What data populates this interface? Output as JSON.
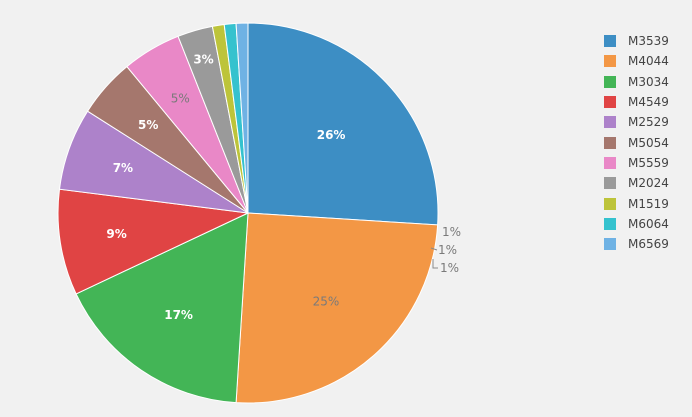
{
  "chart_data": {
    "type": "pie",
    "title": "",
    "series": [
      {
        "name": "",
        "categories": [
          "M3539",
          "M4044",
          "M3034",
          "M4549",
          "M2529",
          "M5054",
          "M5559",
          "M2024",
          "M1519",
          "M6064",
          "M6569"
        ],
        "values": [
          26,
          25,
          17,
          9,
          7,
          5,
          5,
          3,
          1,
          1,
          1
        ],
        "labels": [
          "26%",
          "25%",
          "17%",
          "9%",
          "7%",
          "5%",
          "5%",
          "3%",
          "1%",
          "1%",
          "1%"
        ],
        "colors": [
          "#3d8ec4",
          "#f39745",
          "#43b556",
          "#e04444",
          "#ad82ca",
          "#a5776d",
          "#e988c7",
          "#9a9a9a",
          "#bdc43a",
          "#35c2ce",
          "#6fb2e4"
        ]
      }
    ],
    "legend": {
      "position": "right",
      "items": [
        "M3539",
        "M4044",
        "M3034",
        "M4549",
        "M2529",
        "M5054",
        "M5559",
        "M2024",
        "M1519",
        "M6064",
        "M6569"
      ]
    },
    "direction": "clockwise",
    "start_angle": "12 o'clock"
  }
}
